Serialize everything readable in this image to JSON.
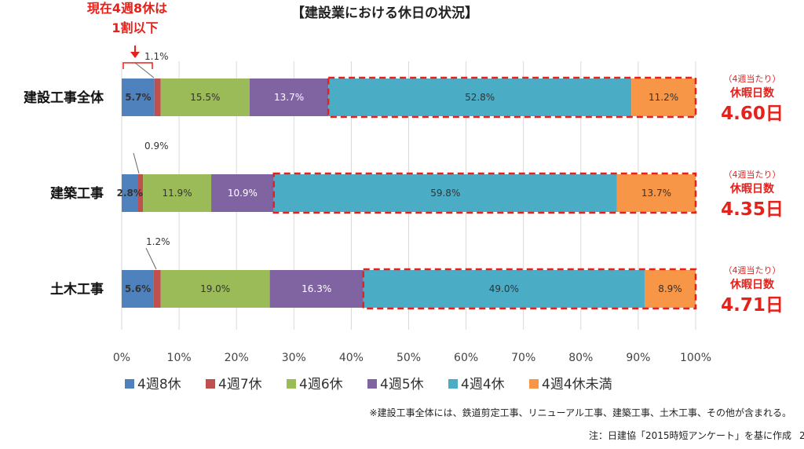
{
  "title": "【建設業における休日の状況】",
  "annotation": {
    "line1": "現在4週8休は",
    "line2": "1割以下"
  },
  "chart_data": {
    "type": "bar",
    "orientation": "horizontal",
    "stacked": "percent",
    "categories": [
      "建設工事全体",
      "建築工事",
      "土木工事"
    ],
    "series": [
      {
        "name": "4週8休",
        "color": "#4f81bd",
        "values": [
          5.7,
          2.8,
          5.6
        ]
      },
      {
        "name": "4週7休",
        "color": "#c0504d",
        "values": [
          1.1,
          0.9,
          1.2
        ]
      },
      {
        "name": "4週6休",
        "color": "#9bbb59",
        "values": [
          15.5,
          11.9,
          19.0
        ]
      },
      {
        "name": "4週5休",
        "color": "#8064a2",
        "values": [
          13.7,
          10.9,
          16.3
        ]
      },
      {
        "name": "4週4休",
        "color": "#4bacc6",
        "values": [
          52.8,
          59.8,
          49.0
        ]
      },
      {
        "name": "4週4休未満",
        "color": "#f79646",
        "values": [
          11.2,
          13.7,
          8.9
        ]
      }
    ],
    "data_labels": [
      [
        "5.7%",
        "1.1%",
        "15.5%",
        "13.7%",
        "52.8%",
        "11.2%"
      ],
      [
        "2.8%",
        "0.9%",
        "11.9%",
        "10.9%",
        "59.8%",
        "13.7%"
      ],
      [
        "5.6%",
        "1.2%",
        "19.0%",
        "16.3%",
        "49.0%",
        "8.9%"
      ]
    ],
    "xlim": [
      0,
      100
    ],
    "xticks": [
      "0%",
      "10%",
      "20%",
      "30%",
      "40%",
      "50%",
      "60%",
      "70%",
      "80%",
      "90%",
      "100%"
    ],
    "legend_position": "bottom"
  },
  "side_notes": [
    {
      "sub": "（4週当たり）",
      "main": "休暇日数",
      "big": "4.60日"
    },
    {
      "sub": "（4週当たり）",
      "main": "休暇日数",
      "big": "4.35日"
    },
    {
      "sub": "（4週当たり）",
      "main": "休暇日数",
      "big": "4.71日"
    }
  ],
  "footnote": "※建設工事全体には、鉄道剪定工事、リニューアル工事、建築工事、土木工事、その他が含まれる。",
  "source_note": "注：日建協「2015時短アンケート」を基に作成",
  "page_fragment": "2",
  "colors": {
    "accent": "#e8201a",
    "grid": "#d9d9d9"
  }
}
